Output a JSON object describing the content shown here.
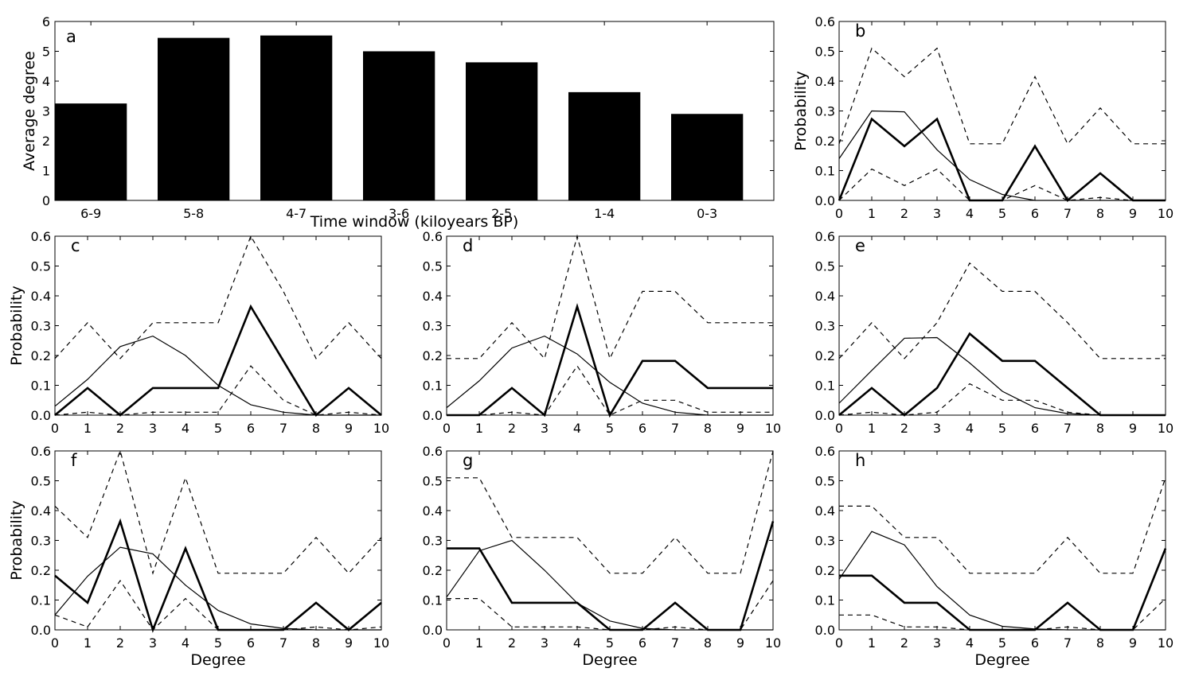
{
  "figure": {
    "colors": {
      "ink": "#000000",
      "background": "#ffffff"
    }
  },
  "chart_data": [
    {
      "panel": "a",
      "type": "bar",
      "categories": [
        "6-9",
        "5-8",
        "4-7",
        "3-6",
        "2-5",
        "1-4",
        "0-3"
      ],
      "values": [
        3.25,
        5.45,
        5.53,
        5.0,
        4.63,
        3.63,
        2.9
      ],
      "xlabel": "Time window (kiloyears BP)",
      "ylabel": "Average degree",
      "ylim": [
        0,
        6
      ],
      "yticks": [
        0,
        1,
        2,
        3,
        4,
        5,
        6
      ],
      "bar_color": "#000000",
      "grid": false
    },
    {
      "panel": "b",
      "type": "line",
      "x": [
        0,
        1,
        2,
        3,
        4,
        5,
        6,
        7,
        8,
        9,
        10
      ],
      "series": [
        {
          "style": "thin-solid",
          "values": [
            0.14,
            0.3,
            0.297,
            0.17,
            0.07,
            0.02,
            0.0,
            0.0,
            0.0,
            0.0,
            0.0
          ]
        },
        {
          "style": "thick-solid",
          "values": [
            0.0,
            0.273,
            0.182,
            0.273,
            0.0,
            0.0,
            0.182,
            0.0,
            0.091,
            0.0,
            0.0
          ]
        },
        {
          "style": "dashed-upper",
          "values": [
            0.19,
            0.51,
            0.415,
            0.51,
            0.19,
            0.19,
            0.415,
            0.19,
            0.31,
            0.19,
            0.19
          ]
        },
        {
          "style": "dashed-lower",
          "values": [
            0.0,
            0.105,
            0.05,
            0.105,
            0.0,
            0.0,
            0.05,
            0.0,
            0.01,
            0.0,
            0.0
          ]
        }
      ],
      "xlabel": "",
      "ylabel": "Probability",
      "xlim": [
        0,
        10
      ],
      "ylim": [
        0,
        0.6
      ],
      "xticks": [
        "0",
        "1",
        "2",
        "3",
        "4",
        "5",
        "6",
        "7",
        "8",
        "9",
        "10"
      ],
      "yticks": [
        "0.0",
        "0.1",
        "0.2",
        "0.3",
        "0.4",
        "0.5",
        "0.6"
      ]
    },
    {
      "panel": "c",
      "type": "line",
      "x": [
        0,
        1,
        2,
        3,
        4,
        5,
        6,
        7,
        8,
        9,
        10
      ],
      "series": [
        {
          "style": "thin-solid",
          "values": [
            0.03,
            0.12,
            0.23,
            0.265,
            0.2,
            0.1,
            0.035,
            0.01,
            0.0,
            0.0,
            0.0
          ]
        },
        {
          "style": "thick-solid",
          "values": [
            0.0,
            0.091,
            0.0,
            0.091,
            0.091,
            0.091,
            0.364,
            0.182,
            0.0,
            0.091,
            0.0
          ]
        },
        {
          "style": "dashed-upper",
          "values": [
            0.19,
            0.31,
            0.19,
            0.31,
            0.31,
            0.31,
            0.6,
            0.415,
            0.19,
            0.31,
            0.19
          ]
        },
        {
          "style": "dashed-lower",
          "values": [
            0.0,
            0.01,
            0.0,
            0.01,
            0.01,
            0.01,
            0.165,
            0.05,
            0.0,
            0.01,
            0.0
          ]
        }
      ],
      "xlabel": "",
      "ylabel": "Probability",
      "xlim": [
        0,
        10
      ],
      "ylim": [
        0,
        0.6
      ],
      "xticks": [
        "0",
        "1",
        "2",
        "3",
        "4",
        "5",
        "6",
        "7",
        "8",
        "9",
        "10"
      ],
      "yticks": [
        "0.0",
        "0.1",
        "0.2",
        "0.3",
        "0.4",
        "0.5",
        "0.6"
      ]
    },
    {
      "panel": "d",
      "type": "line",
      "x": [
        0,
        1,
        2,
        3,
        4,
        5,
        6,
        7,
        8,
        9,
        10
      ],
      "series": [
        {
          "style": "thin-solid",
          "values": [
            0.025,
            0.115,
            0.225,
            0.265,
            0.205,
            0.11,
            0.04,
            0.01,
            0.0,
            0.0,
            0.0
          ]
        },
        {
          "style": "thick-solid",
          "values": [
            0.0,
            0.0,
            0.091,
            0.0,
            0.364,
            0.0,
            0.182,
            0.182,
            0.091,
            0.091,
            0.091
          ]
        },
        {
          "style": "dashed-upper",
          "values": [
            0.19,
            0.19,
            0.31,
            0.19,
            0.6,
            0.19,
            0.415,
            0.415,
            0.31,
            0.31,
            0.31
          ]
        },
        {
          "style": "dashed-lower",
          "values": [
            0.0,
            0.0,
            0.01,
            0.0,
            0.165,
            0.0,
            0.05,
            0.05,
            0.01,
            0.01,
            0.01
          ]
        }
      ],
      "xlabel": "",
      "ylabel": "",
      "xlim": [
        0,
        10
      ],
      "ylim": [
        0,
        0.6
      ],
      "xticks": [
        "0",
        "1",
        "2",
        "3",
        "4",
        "5",
        "6",
        "7",
        "8",
        "9",
        "10"
      ],
      "yticks": [
        "0.0",
        "0.1",
        "0.2",
        "0.3",
        "0.4",
        "0.5",
        "0.6"
      ]
    },
    {
      "panel": "e",
      "type": "line",
      "x": [
        0,
        1,
        2,
        3,
        4,
        5,
        6,
        7,
        8,
        9,
        10
      ],
      "series": [
        {
          "style": "thin-solid",
          "values": [
            0.04,
            0.15,
            0.258,
            0.26,
            0.175,
            0.08,
            0.025,
            0.005,
            0.0,
            0.0,
            0.0
          ]
        },
        {
          "style": "thick-solid",
          "values": [
            0.0,
            0.091,
            0.0,
            0.091,
            0.273,
            0.182,
            0.182,
            0.091,
            0.0,
            0.0,
            0.0
          ]
        },
        {
          "style": "dashed-upper",
          "values": [
            0.19,
            0.31,
            0.19,
            0.31,
            0.51,
            0.415,
            0.415,
            0.31,
            0.19,
            0.19,
            0.19
          ]
        },
        {
          "style": "dashed-lower",
          "values": [
            0.0,
            0.01,
            0.0,
            0.01,
            0.105,
            0.05,
            0.05,
            0.01,
            0.0,
            0.0,
            0.0
          ]
        }
      ],
      "xlabel": "",
      "ylabel": "",
      "xlim": [
        0,
        10
      ],
      "ylim": [
        0,
        0.6
      ],
      "xticks": [
        "0",
        "1",
        "2",
        "3",
        "4",
        "5",
        "6",
        "7",
        "8",
        "9",
        "10"
      ],
      "yticks": [
        "0.0",
        "0.1",
        "0.2",
        "0.3",
        "0.4",
        "0.5",
        "0.6"
      ]
    },
    {
      "panel": "f",
      "type": "line",
      "x": [
        0,
        1,
        2,
        3,
        4,
        5,
        6,
        7,
        8,
        9,
        10
      ],
      "series": [
        {
          "style": "thin-solid",
          "values": [
            0.05,
            0.18,
            0.277,
            0.255,
            0.15,
            0.065,
            0.02,
            0.005,
            0.0,
            0.0,
            0.0
          ]
        },
        {
          "style": "thick-solid",
          "values": [
            0.182,
            0.091,
            0.364,
            0.0,
            0.273,
            0.0,
            0.0,
            0.0,
            0.091,
            0.0,
            0.091
          ]
        },
        {
          "style": "dashed-upper",
          "values": [
            0.415,
            0.31,
            0.6,
            0.19,
            0.51,
            0.19,
            0.19,
            0.19,
            0.31,
            0.19,
            0.31
          ]
        },
        {
          "style": "dashed-lower",
          "values": [
            0.05,
            0.01,
            0.165,
            0.0,
            0.105,
            0.0,
            0.0,
            0.0,
            0.01,
            0.0,
            0.01
          ]
        }
      ],
      "xlabel": "Degree",
      "ylabel": "Probability",
      "xlim": [
        0,
        10
      ],
      "ylim": [
        0,
        0.6
      ],
      "xticks": [
        "0",
        "1",
        "2",
        "3",
        "4",
        "5",
        "6",
        "7",
        "8",
        "9",
        "10"
      ],
      "yticks": [
        "0.0",
        "0.1",
        "0.2",
        "0.3",
        "0.4",
        "0.5",
        "0.6"
      ]
    },
    {
      "panel": "g",
      "type": "line",
      "x": [
        0,
        1,
        2,
        3,
        4,
        5,
        6,
        7,
        8,
        9,
        10
      ],
      "series": [
        {
          "style": "thin-solid",
          "values": [
            0.11,
            0.265,
            0.3,
            0.2,
            0.09,
            0.03,
            0.005,
            0.0,
            0.0,
            0.0,
            0.0
          ]
        },
        {
          "style": "thick-solid",
          "values": [
            0.273,
            0.273,
            0.091,
            0.091,
            0.091,
            0.0,
            0.0,
            0.091,
            0.0,
            0.0,
            0.364
          ]
        },
        {
          "style": "dashed-upper",
          "values": [
            0.51,
            0.51,
            0.31,
            0.31,
            0.31,
            0.19,
            0.19,
            0.31,
            0.19,
            0.19,
            0.6
          ]
        },
        {
          "style": "dashed-lower",
          "values": [
            0.105,
            0.105,
            0.01,
            0.01,
            0.01,
            0.0,
            0.0,
            0.01,
            0.0,
            0.0,
            0.165
          ]
        }
      ],
      "xlabel": "Degree",
      "ylabel": "",
      "xlim": [
        0,
        10
      ],
      "ylim": [
        0,
        0.6
      ],
      "xticks": [
        "0",
        "1",
        "2",
        "3",
        "4",
        "5",
        "6",
        "7",
        "8",
        "9",
        "10"
      ],
      "yticks": [
        "0.0",
        "0.1",
        "0.2",
        "0.3",
        "0.4",
        "0.5",
        "0.6"
      ]
    },
    {
      "panel": "h",
      "type": "line",
      "x": [
        0,
        1,
        2,
        3,
        4,
        5,
        6,
        7,
        8,
        9,
        10
      ],
      "series": [
        {
          "style": "thin-solid",
          "values": [
            0.17,
            0.33,
            0.285,
            0.145,
            0.05,
            0.012,
            0.003,
            0.0,
            0.0,
            0.0,
            0.0
          ]
        },
        {
          "style": "thick-solid",
          "values": [
            0.182,
            0.182,
            0.091,
            0.091,
            0.0,
            0.0,
            0.0,
            0.091,
            0.0,
            0.0,
            0.273
          ]
        },
        {
          "style": "dashed-upper",
          "values": [
            0.415,
            0.415,
            0.31,
            0.31,
            0.19,
            0.19,
            0.19,
            0.31,
            0.19,
            0.19,
            0.51
          ]
        },
        {
          "style": "dashed-lower",
          "values": [
            0.05,
            0.05,
            0.01,
            0.01,
            0.0,
            0.0,
            0.0,
            0.01,
            0.0,
            0.0,
            0.105
          ]
        }
      ],
      "xlabel": "Degree",
      "ylabel": "",
      "xlim": [
        0,
        10
      ],
      "ylim": [
        0,
        0.6
      ],
      "xticks": [
        "0",
        "1",
        "2",
        "3",
        "4",
        "5",
        "6",
        "7",
        "8",
        "9",
        "10"
      ],
      "yticks": [
        "0.0",
        "0.1",
        "0.2",
        "0.3",
        "0.4",
        "0.5",
        "0.6"
      ]
    }
  ]
}
